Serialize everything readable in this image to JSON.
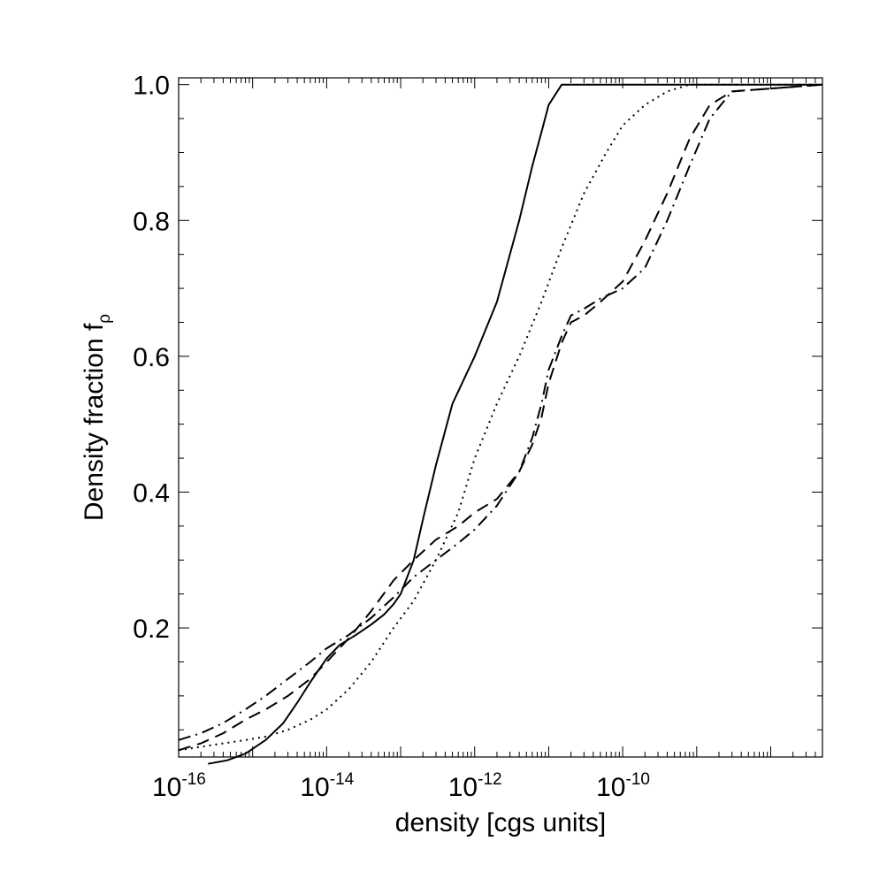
{
  "chart_data": {
    "type": "line",
    "xlabel": "density [cgs units]",
    "ylabel": "Density fraction f",
    "ylabel_subscript": "ρ",
    "xscale": "log",
    "xlim": [
      1e-16,
      5e-08
    ],
    "ylim": [
      0.01,
      1.01
    ],
    "x_ticks": [
      {
        "base": "10",
        "exp": "-16",
        "value": 1e-16
      },
      {
        "base": "10",
        "exp": "-14",
        "value": 1e-14
      },
      {
        "base": "10",
        "exp": "-12",
        "value": 1e-12
      },
      {
        "base": "10",
        "exp": "-10",
        "value": 1e-10
      }
    ],
    "y_ticks": [
      "0.2",
      "0.4",
      "0.6",
      "0.8",
      "1.0"
    ],
    "grid": false,
    "legend": "none",
    "series": [
      {
        "style": "solid",
        "x": [
          2.5e-16,
          4.5e-16,
          8e-16,
          1.5e-15,
          2.6e-15,
          4e-15,
          6e-15,
          8e-15,
          1e-14,
          1.5e-14,
          2.5e-14,
          4e-14,
          6e-14,
          8e-14,
          1e-13,
          1.5e-13,
          2e-13,
          3e-13,
          5e-13,
          1e-12,
          2e-12,
          4e-12,
          6e-12,
          8e-12,
          1e-11,
          1.5e-11,
          3e-11,
          5e-08
        ],
        "y": [
          0.0,
          0.005,
          0.015,
          0.035,
          0.06,
          0.09,
          0.12,
          0.14,
          0.155,
          0.175,
          0.19,
          0.205,
          0.22,
          0.235,
          0.25,
          0.3,
          0.36,
          0.44,
          0.53,
          0.6,
          0.68,
          0.8,
          0.88,
          0.93,
          0.97,
          1.0,
          1.0,
          1.0
        ]
      },
      {
        "style": "dotted",
        "x": [
          1e-16,
          2e-16,
          4e-16,
          8e-16,
          1.5e-15,
          3e-15,
          6e-15,
          1e-14,
          2e-14,
          4e-14,
          8e-14,
          1.5e-13,
          3e-13,
          6e-13,
          1e-12,
          2e-12,
          4e-12,
          8e-12,
          1.5e-11,
          3e-11,
          6e-11,
          1e-10,
          2e-10,
          4e-10,
          8e-10,
          1.5e-09,
          5e-08
        ],
        "y": [
          0.02,
          0.025,
          0.03,
          0.035,
          0.04,
          0.05,
          0.065,
          0.08,
          0.11,
          0.15,
          0.2,
          0.24,
          0.3,
          0.37,
          0.45,
          0.53,
          0.6,
          0.68,
          0.76,
          0.84,
          0.9,
          0.94,
          0.97,
          0.99,
          1.0,
          1.0,
          1.0
        ]
      },
      {
        "style": "dashed",
        "x": [
          1e-16,
          2e-16,
          4e-16,
          8e-16,
          1.5e-15,
          3e-15,
          6e-15,
          1e-14,
          2e-14,
          4e-14,
          8e-14,
          1.5e-13,
          3e-13,
          6e-13,
          1e-12,
          2e-12,
          4e-12,
          6e-12,
          8e-12,
          1e-11,
          1.5e-11,
          2e-11,
          3e-11,
          5e-11,
          1e-10,
          2e-10,
          4e-10,
          8e-10,
          1.5e-09,
          3e-09,
          5e-08
        ],
        "y": [
          0.02,
          0.03,
          0.045,
          0.065,
          0.08,
          0.1,
          0.125,
          0.15,
          0.185,
          0.225,
          0.27,
          0.3,
          0.33,
          0.35,
          0.37,
          0.39,
          0.43,
          0.47,
          0.51,
          0.56,
          0.62,
          0.65,
          0.66,
          0.68,
          0.71,
          0.77,
          0.84,
          0.92,
          0.97,
          0.99,
          1.0
        ]
      },
      {
        "style": "dashdot",
        "x": [
          1e-16,
          2e-16,
          4e-16,
          8e-16,
          1.5e-15,
          3e-15,
          6e-15,
          1e-14,
          2e-14,
          4e-14,
          8e-14,
          1.5e-13,
          3e-13,
          6e-13,
          1e-12,
          2e-12,
          4e-12,
          6e-12,
          8e-12,
          1e-11,
          1.5e-11,
          2e-11,
          3e-11,
          5e-11,
          1e-10,
          2e-10,
          4e-10,
          8e-10,
          1.5e-09,
          3e-09,
          5e-08
        ],
        "y": [
          0.035,
          0.045,
          0.06,
          0.08,
          0.1,
          0.125,
          0.15,
          0.17,
          0.19,
          0.215,
          0.245,
          0.275,
          0.3,
          0.325,
          0.345,
          0.38,
          0.43,
          0.48,
          0.53,
          0.58,
          0.63,
          0.66,
          0.67,
          0.685,
          0.7,
          0.73,
          0.8,
          0.88,
          0.95,
          0.99,
          1.0
        ]
      }
    ]
  }
}
